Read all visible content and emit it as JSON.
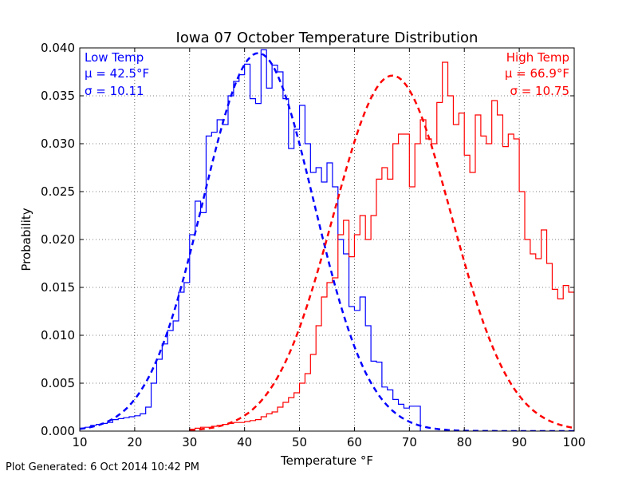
{
  "chart_data": {
    "type": "line",
    "title": "Iowa 07 October Temperature Distribution",
    "xlabel": "Temperature °F",
    "ylabel": "Probability",
    "xlim": [
      10,
      100
    ],
    "ylim": [
      0.0,
      0.04
    ],
    "x_ticks": [
      "10",
      "20",
      "30",
      "40",
      "50",
      "60",
      "70",
      "80",
      "90",
      "100"
    ],
    "y_ticks": [
      "0.000",
      "0.005",
      "0.010",
      "0.015",
      "0.020",
      "0.025",
      "0.030",
      "0.035",
      "0.040"
    ],
    "grid": true,
    "series": [
      {
        "name": "Low Temp",
        "color": "#0000ff",
        "mu_label": "μ = 42.5°F",
        "sigma_label": "σ = 10.11",
        "mu": 42.5,
        "sigma": 10.11,
        "histogram": {
          "x": [
            10,
            11,
            12,
            13,
            14,
            15,
            16,
            17,
            18,
            19,
            20,
            21,
            22,
            23,
            24,
            25,
            26,
            27,
            28,
            29,
            30,
            31,
            32,
            33,
            34,
            35,
            36,
            37,
            38,
            39,
            40,
            41,
            42,
            43,
            44,
            45,
            46,
            47,
            48,
            49,
            50,
            51,
            52,
            53,
            54,
            55,
            56,
            57,
            58,
            59,
            60,
            61,
            62,
            63,
            64,
            65,
            66,
            67,
            68,
            69,
            70,
            71
          ],
          "y": [
            0.0003,
            0.0004,
            0.0006,
            0.0007,
            0.0008,
            0.0009,
            0.0012,
            0.0013,
            0.0014,
            0.0015,
            0.0016,
            0.0018,
            0.0025,
            0.005,
            0.0075,
            0.0091,
            0.0105,
            0.0115,
            0.0145,
            0.0155,
            0.0205,
            0.024,
            0.0228,
            0.0308,
            0.0312,
            0.0325,
            0.032,
            0.035,
            0.0365,
            0.0372,
            0.0383,
            0.0347,
            0.0342,
            0.0398,
            0.0358,
            0.0382,
            0.0375,
            0.0347,
            0.0295,
            0.0315,
            0.034,
            0.03,
            0.027,
            0.0275,
            0.026,
            0.028,
            0.0255,
            0.02,
            0.0185,
            0.013,
            0.0126,
            0.014,
            0.011,
            0.0073,
            0.0072,
            0.0046,
            0.0043,
            0.0033,
            0.0028,
            0.0024,
            0.0026,
            0.0026
          ],
          "end": 72
        }
      },
      {
        "name": "High Temp",
        "color": "#ff0000",
        "mu_label": "μ = 66.9°F",
        "sigma_label": "σ = 10.75",
        "mu": 66.9,
        "sigma": 10.75,
        "histogram": {
          "x": [
            30,
            31,
            32,
            33,
            34,
            35,
            36,
            37,
            38,
            39,
            40,
            41,
            42,
            43,
            44,
            45,
            46,
            47,
            48,
            49,
            50,
            51,
            52,
            53,
            54,
            55,
            56,
            57,
            58,
            59,
            60,
            61,
            62,
            63,
            64,
            65,
            66,
            67,
            68,
            69,
            70,
            71,
            72,
            73,
            74,
            75,
            76,
            77,
            78,
            79,
            80,
            81,
            82,
            83,
            84,
            85,
            86,
            87,
            88,
            89,
            90,
            91,
            92,
            93,
            94,
            95,
            96,
            97,
            98,
            99
          ],
          "y": [
            0.0002,
            0.0003,
            0.0004,
            0.0004,
            0.0005,
            0.0006,
            0.0007,
            0.0008,
            0.0009,
            0.0009,
            0.001,
            0.0011,
            0.0012,
            0.0015,
            0.0018,
            0.002,
            0.0025,
            0.003,
            0.0035,
            0.004,
            0.005,
            0.006,
            0.008,
            0.011,
            0.014,
            0.0155,
            0.016,
            0.0205,
            0.022,
            0.0182,
            0.0205,
            0.0225,
            0.02,
            0.0225,
            0.0263,
            0.0275,
            0.0263,
            0.03,
            0.031,
            0.031,
            0.0255,
            0.03,
            0.0325,
            0.0305,
            0.03,
            0.0343,
            0.0385,
            0.035,
            0.032,
            0.0332,
            0.0288,
            0.027,
            0.033,
            0.0308,
            0.03,
            0.0345,
            0.033,
            0.0297,
            0.031,
            0.0305,
            0.025,
            0.02,
            0.0185,
            0.018,
            0.021,
            0.0175,
            0.0148,
            0.0138,
            0.0152,
            0.0145
          ],
          "end": 100
        }
      }
    ]
  },
  "footer": "Plot Generated: 6 Oct 2014 10:42 PM"
}
